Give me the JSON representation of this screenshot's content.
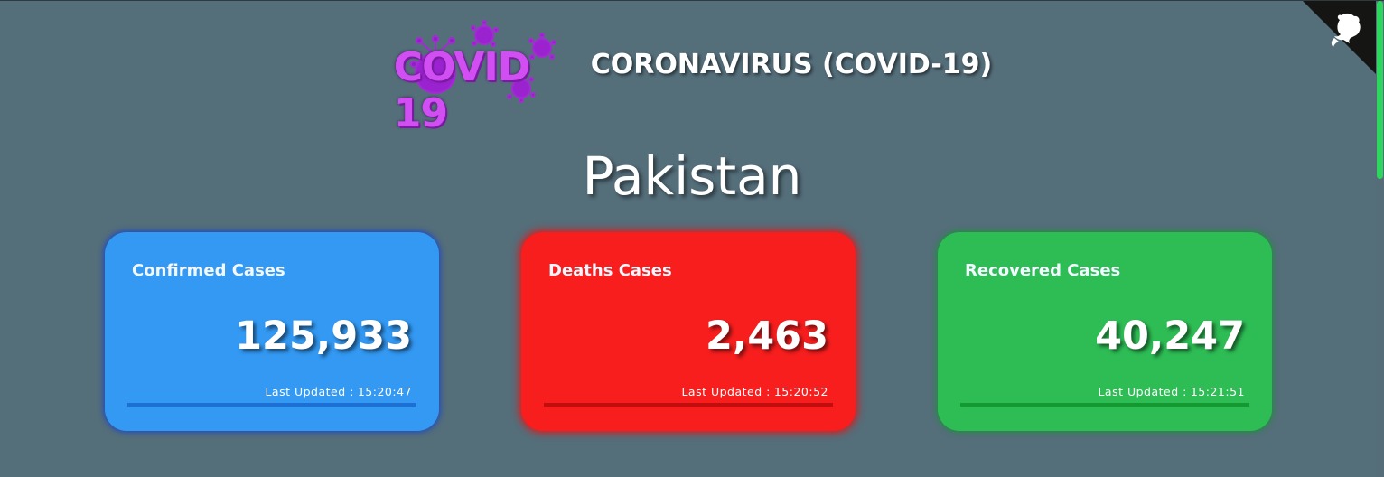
{
  "header": {
    "logo_text": "COVID 19",
    "title": "CORONAVIRUS (COVID-19)"
  },
  "country": "Pakistan",
  "cards": [
    {
      "title": "Confirmed Cases",
      "value": "125,933",
      "updated_label": "Last Updated :",
      "updated_time": "15:20:47",
      "color": "#3399f3"
    },
    {
      "title": "Deaths Cases",
      "value": "2,463",
      "updated_label": "Last Updated :",
      "updated_time": "15:20:52",
      "color": "#f81e1e"
    },
    {
      "title": "Recovered Cases",
      "value": "40,247",
      "updated_label": "Last Updated :",
      "updated_time": "15:21:51",
      "color": "#2ebd55"
    }
  ],
  "corner": {
    "icon": "github-octocat-icon",
    "color": "#151513"
  },
  "scrollbar": {
    "thumb_color": "#2bd75c"
  }
}
